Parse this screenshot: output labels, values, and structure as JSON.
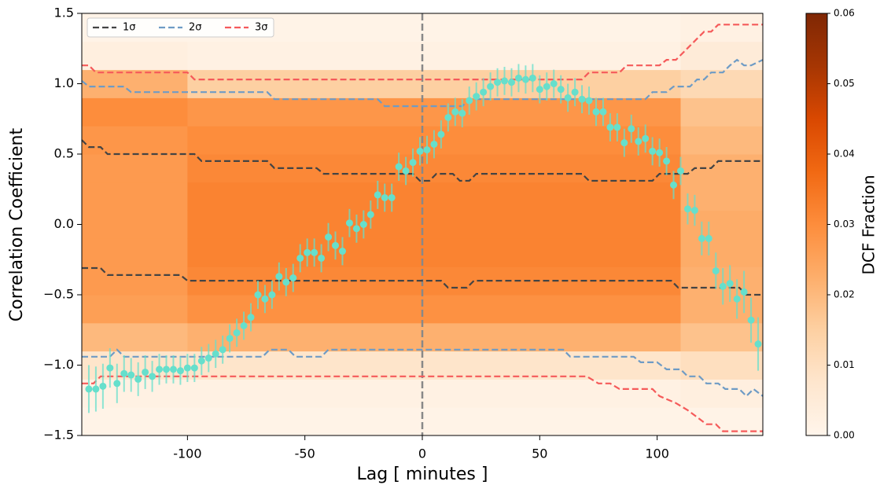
{
  "chart_data": {
    "type": "scatter",
    "xlabel": "Lag [ minutes ]",
    "ylabel": "Correlation Coefficient",
    "xlim": [
      -145,
      145
    ],
    "ylim": [
      -1.5,
      1.5
    ],
    "xticks": [
      -100,
      -50,
      0,
      50,
      100
    ],
    "yticks": [
      {
        "value": -1.5,
        "label": "−1.5"
      },
      {
        "value": -1.0,
        "label": "−1.0"
      },
      {
        "value": -0.5,
        "label": "−0.5"
      },
      {
        "value": 0,
        "label": "0.0"
      },
      0.5,
      {
        "value": 1.0,
        "label": "1.0"
      },
      1.5
    ],
    "vline": 0,
    "color": "#66dfcc",
    "x": [
      -142,
      -139,
      -136,
      -133,
      -130,
      -127,
      -124,
      -121,
      -118,
      -115,
      -112,
      -109,
      -106,
      -103,
      -100,
      -97,
      -94,
      -91,
      -88,
      -85,
      -82,
      -79,
      -76,
      -73,
      -70,
      -67,
      -64,
      -61,
      -58,
      -55,
      -52,
      -49,
      -46,
      -43,
      -40,
      -37,
      -34,
      -31,
      -28,
      -25,
      -22,
      -19,
      -16,
      -13,
      -10,
      -7,
      -4,
      -1,
      2,
      5,
      8,
      11,
      14,
      17,
      20,
      23,
      26,
      29,
      32,
      35,
      38,
      41,
      44,
      47,
      50,
      53,
      56,
      59,
      62,
      65,
      68,
      71,
      74,
      77,
      80,
      83,
      86,
      89,
      92,
      95,
      98,
      101,
      104,
      107,
      110,
      113,
      116,
      119,
      122,
      125,
      128,
      131,
      134,
      137,
      140,
      143
    ],
    "values": [
      -1.17,
      -1.17,
      -1.15,
      -1.02,
      -1.13,
      -1.06,
      -1.07,
      -1.1,
      -1.05,
      -1.08,
      -1.03,
      -1.03,
      -1.03,
      -1.04,
      -1.02,
      -1.02,
      -0.97,
      -0.95,
      -0.92,
      -0.89,
      -0.81,
      -0.77,
      -0.72,
      -0.66,
      -0.5,
      -0.53,
      -0.5,
      -0.37,
      -0.41,
      -0.38,
      -0.24,
      -0.2,
      -0.2,
      -0.24,
      -0.09,
      -0.15,
      -0.19,
      0.01,
      -0.03,
      0.0,
      0.07,
      0.21,
      0.19,
      0.19,
      0.41,
      0.38,
      0.44,
      0.52,
      0.53,
      0.57,
      0.64,
      0.76,
      0.8,
      0.79,
      0.88,
      0.91,
      0.94,
      0.98,
      1.01,
      1.02,
      1.01,
      1.04,
      1.03,
      1.04,
      0.96,
      0.98,
      1.0,
      0.96,
      0.9,
      0.94,
      0.89,
      0.88,
      0.8,
      0.8,
      0.69,
      0.69,
      0.58,
      0.68,
      0.59,
      0.61,
      0.52,
      0.51,
      0.45,
      0.28,
      0.38,
      0.11,
      0.1,
      -0.1,
      -0.1,
      -0.33,
      -0.44,
      -0.42,
      -0.53,
      -0.48,
      -0.68,
      -0.85
    ],
    "errors": [
      0.17,
      0.16,
      0.16,
      0.14,
      0.14,
      0.13,
      0.12,
      0.12,
      0.12,
      0.11,
      0.11,
      0.1,
      0.1,
      0.1,
      0.1,
      0.1,
      0.1,
      0.1,
      0.1,
      0.1,
      0.1,
      0.1,
      0.1,
      0.1,
      0.1,
      0.1,
      0.1,
      0.1,
      0.1,
      0.1,
      0.1,
      0.1,
      0.1,
      0.1,
      0.1,
      0.1,
      0.1,
      0.1,
      0.1,
      0.1,
      0.1,
      0.1,
      0.1,
      0.1,
      0.1,
      0.1,
      0.1,
      0.1,
      0.1,
      0.1,
      0.1,
      0.1,
      0.1,
      0.1,
      0.1,
      0.1,
      0.1,
      0.1,
      0.1,
      0.1,
      0.1,
      0.1,
      0.1,
      0.1,
      0.1,
      0.1,
      0.1,
      0.1,
      0.1,
      0.1,
      0.1,
      0.1,
      0.1,
      0.1,
      0.1,
      0.1,
      0.1,
      0.1,
      0.1,
      0.1,
      0.1,
      0.1,
      0.1,
      0.1,
      0.1,
      0.11,
      0.11,
      0.12,
      0.12,
      0.13,
      0.13,
      0.13,
      0.14,
      0.15,
      0.16,
      0.19
    ],
    "lines": [
      {
        "name": "1σ",
        "color": "#444444",
        "x": [
          -145,
          -142,
          -137,
          -134,
          -97,
          -94,
          -66,
          -63,
          -45,
          -42,
          -4,
          -1,
          3,
          6,
          13,
          16,
          20,
          23,
          68,
          71,
          98,
          101,
          113,
          116,
          123,
          126,
          145
        ],
        "values": [
          0.6,
          0.55,
          0.55,
          0.5,
          0.5,
          0.45,
          0.45,
          0.4,
          0.4,
          0.36,
          0.36,
          0.31,
          0.31,
          0.36,
          0.36,
          0.31,
          0.31,
          0.36,
          0.36,
          0.31,
          0.31,
          0.36,
          0.36,
          0.4,
          0.4,
          0.45,
          0.45
        ]
      },
      {
        "name": "1σ lower",
        "color": "#444444",
        "x": [
          -145,
          -137,
          -134,
          -127,
          -124,
          -103,
          -100,
          8,
          11,
          19,
          22,
          106,
          109,
          120,
          123,
          135,
          138,
          145
        ],
        "values": [
          -0.31,
          -0.31,
          -0.36,
          -0.36,
          -0.36,
          -0.36,
          -0.4,
          -0.4,
          -0.45,
          -0.45,
          -0.4,
          -0.4,
          -0.45,
          -0.45,
          -0.45,
          -0.45,
          -0.5,
          -0.5
        ]
      },
      {
        "name": "2σ",
        "color": "#6e9bc5",
        "x": [
          -145,
          -142,
          -127,
          -124,
          -66,
          -63,
          -19,
          -16,
          17,
          20,
          95,
          98,
          104,
          107,
          114,
          117,
          120,
          123,
          128,
          131,
          134,
          137,
          140,
          145
        ],
        "values": [
          1.02,
          0.98,
          0.98,
          0.94,
          0.94,
          0.89,
          0.89,
          0.84,
          0.84,
          0.89,
          0.89,
          0.94,
          0.94,
          0.98,
          0.98,
          1.03,
          1.03,
          1.08,
          1.08,
          1.13,
          1.17,
          1.13,
          1.13,
          1.17
        ]
      },
      {
        "name": "2σ lower",
        "color": "#6e9bc5",
        "x": [
          -145,
          -133,
          -130,
          -127,
          -68,
          -65,
          -57,
          -54,
          -43,
          -40,
          60,
          63,
          90,
          93,
          100,
          104,
          110,
          113,
          118,
          121,
          126,
          129,
          135,
          138,
          141,
          145
        ],
        "values": [
          -0.94,
          -0.94,
          -0.89,
          -0.94,
          -0.94,
          -0.89,
          -0.89,
          -0.94,
          -0.94,
          -0.89,
          -0.89,
          -0.94,
          -0.94,
          -0.98,
          -0.98,
          -1.03,
          -1.03,
          -1.08,
          -1.08,
          -1.13,
          -1.13,
          -1.17,
          -1.17,
          -1.22,
          -1.17,
          -1.22
        ]
      },
      {
        "name": "3σ",
        "color": "#f55a5a",
        "x": [
          -145,
          -142,
          -139,
          -100,
          -97,
          68,
          71,
          84,
          87,
          101,
          104,
          108,
          111,
          114,
          117,
          120,
          123,
          126,
          145
        ],
        "values": [
          1.13,
          1.13,
          1.08,
          1.08,
          1.03,
          1.03,
          1.08,
          1.08,
          1.13,
          1.13,
          1.17,
          1.17,
          1.22,
          1.27,
          1.32,
          1.37,
          1.37,
          1.42,
          1.42
        ]
      },
      {
        "name": "3σ lower",
        "color": "#f55a5a",
        "x": [
          -145,
          -140,
          -137,
          70,
          75,
          80,
          84,
          98,
          101,
          108,
          113,
          117,
          121,
          125,
          128,
          145
        ],
        "values": [
          -1.13,
          -1.13,
          -1.08,
          -1.08,
          -1.13,
          -1.13,
          -1.17,
          -1.17,
          -1.22,
          -1.27,
          -1.32,
          -1.37,
          -1.42,
          -1.42,
          -1.47,
          -1.47
        ]
      }
    ],
    "legend": "upper left",
    "legend_entries": [
      0,
      2,
      4
    ],
    "heatmap": {
      "xbins": [
        -145,
        -100,
        110,
        145
      ],
      "ybins": [
        -1.5,
        -1.3,
        -1.1,
        -0.9,
        -0.7,
        -0.5,
        -0.3,
        -0.1,
        0.1,
        0.3,
        0.5,
        0.7,
        0.9,
        1.1,
        1.3,
        1.5
      ],
      "values": [
        [
          0.001,
          0.002,
          0.008,
          0.02,
          0.026,
          0.027,
          0.027,
          0.027,
          0.027,
          0.027,
          0.028,
          0.03,
          0.022,
          0.003,
          0.001
        ],
        [
          0.001,
          0.002,
          0.008,
          0.022,
          0.029,
          0.031,
          0.032,
          0.032,
          0.032,
          0.031,
          0.03,
          0.028,
          0.015,
          0.002,
          0.001
        ],
        [
          0.001,
          0.003,
          0.01,
          0.018,
          0.022,
          0.022,
          0.023,
          0.023,
          0.022,
          0.022,
          0.02,
          0.018,
          0.012,
          0.005,
          0.002
        ]
      ]
    },
    "colormap": [
      "#fff5eb",
      "#fee6ce",
      "#fdd0a2",
      "#fdae6b",
      "#fd8d3c",
      "#f16913",
      "#d94801",
      "#a63603",
      "#7f2704"
    ],
    "colorbar_label": "DCF Fraction",
    "clim": [
      0,
      0.06
    ],
    "cticks": [
      {
        "value": 0,
        "label": "0.00"
      },
      {
        "value": 0.01,
        "label": "0.01"
      },
      {
        "value": 0.02,
        "label": "0.02"
      },
      {
        "value": 0.03,
        "label": "0.03"
      },
      {
        "value": 0.04,
        "label": "0.04"
      },
      {
        "value": 0.05,
        "label": "0.05"
      },
      {
        "value": 0.06,
        "label": "0.06"
      }
    ]
  }
}
